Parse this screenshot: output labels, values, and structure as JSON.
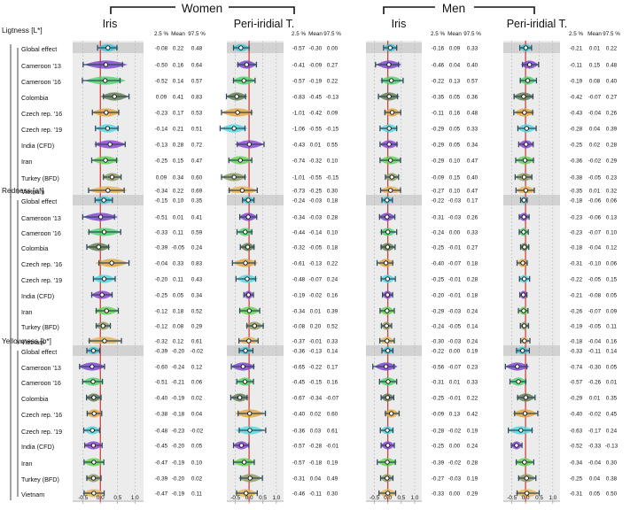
{
  "groups": [
    "Women",
    "Men"
  ],
  "panel_titles": [
    "Iris",
    "Peri-iridial T.",
    "Iris",
    "Peri-iridial T."
  ],
  "stat_headers": [
    "2.5 %",
    "Mean",
    "97.5 %"
  ],
  "sections": [
    "Ligtness [L*]",
    "Redness [a*]",
    "Yellowness [b*]"
  ],
  "rows": [
    "Global effect",
    "Cameroon '13",
    "Cameroon '16",
    "Colombia",
    "Czech rep. '16",
    "Czech rep. '19",
    "India (CFD)",
    "Iran",
    "Turkey (BFD)",
    "Vietnam"
  ],
  "colors": {
    "Global effect": "#36c5d4",
    "Cameroon '13": "#7b3fcf",
    "Cameroon '16": "#4bd36b",
    "Colombia": "#5d7a4a",
    "Czech rep. '16": "#e0a43a",
    "Czech rep. '19": "#4bd8e0",
    "India (CFD)": "#8a3fd6",
    "Iran": "#5fd34f",
    "Turkey (BFD)": "#8d9a5c",
    "Vietnam": "#e8b24f",
    "zero_line": "#cc2222",
    "whisker": "#2f4a5e"
  },
  "x_ticks": [
    "-0.5",
    "0.0",
    "0.5",
    "1.0"
  ],
  "chart_data": {
    "type": "forest",
    "x_range": [
      -0.75,
      1.2
    ],
    "sections": [
      {
        "name": "Ligtness [L*]",
        "panels": [
          {
            "group": "Women",
            "title": "Iris",
            "values": [
              [
                "-0.08",
                "0.22",
                "0.48"
              ],
              [
                "-0.50",
                "0.16",
                "0.64"
              ],
              [
                "-0.52",
                "0.14",
                "0.57"
              ],
              [
                "0.09",
                "0.41",
                "0.83"
              ],
              [
                "-0.23",
                "0.17",
                "0.53"
              ],
              [
                "-0.14",
                "0.21",
                "0.51"
              ],
              [
                "-0.13",
                "0.28",
                "0.72"
              ],
              [
                "-0.25",
                "0.15",
                "0.47"
              ],
              [
                "0.09",
                "0.34",
                "0.60"
              ],
              [
                "-0.34",
                "0.22",
                "0.69"
              ]
            ]
          },
          {
            "group": "Women",
            "title": "Peri-iridial T.",
            "values": [
              [
                "-0.57",
                "-0.30",
                "0.00"
              ],
              [
                "-0.41",
                "-0.09",
                "0.27"
              ],
              [
                "-0.57",
                "-0.19",
                "0.22"
              ],
              [
                "-0.83",
                "-0.45",
                "-0.13"
              ],
              [
                "-1.01",
                "-0.42",
                "0.09"
              ],
              [
                "-1.06",
                "-0.55",
                "-0.15"
              ],
              [
                "-0.43",
                "0.01",
                "0.55"
              ],
              [
                "-0.74",
                "-0.32",
                "0.10"
              ],
              [
                "-1.01",
                "-0.55",
                "-0.15"
              ],
              [
                "-0.73",
                "-0.25",
                "0.30"
              ]
            ]
          },
          {
            "group": "Men",
            "title": "Iris",
            "values": [
              [
                "-0.16",
                "0.09",
                "0.33"
              ],
              [
                "-0.46",
                "0.04",
                "0.40"
              ],
              [
                "-0.22",
                "0.13",
                "0.57"
              ],
              [
                "-0.35",
                "0.05",
                "0.36"
              ],
              [
                "-0.11",
                "0.16",
                "0.48"
              ],
              [
                "-0.29",
                "0.05",
                "0.33"
              ],
              [
                "-0.29",
                "0.05",
                "0.34"
              ],
              [
                "-0.29",
                "0.10",
                "0.47"
              ],
              [
                "-0.09",
                "0.15",
                "0.40"
              ],
              [
                "-0.27",
                "0.10",
                "0.47"
              ]
            ]
          },
          {
            "group": "Men",
            "title": "Peri-iridial T.",
            "values": [
              [
                "-0.21",
                "0.01",
                "0.22"
              ],
              [
                "-0.11",
                "0.15",
                "0.48"
              ],
              [
                "-0.19",
                "0.08",
                "0.40"
              ],
              [
                "-0.42",
                "-0.07",
                "0.27"
              ],
              [
                "-0.43",
                "-0.04",
                "0.26"
              ],
              [
                "-0.28",
                "0.04",
                "0.39"
              ],
              [
                "-0.25",
                "0.02",
                "0.28"
              ],
              [
                "-0.36",
                "-0.02",
                "0.29"
              ],
              [
                "-0.38",
                "-0.05",
                "0.23"
              ],
              [
                "-0.35",
                "0.01",
                "0.32"
              ]
            ]
          }
        ]
      },
      {
        "name": "Redness [a*]",
        "panels": [
          {
            "group": "Women",
            "title": "Iris",
            "values": [
              [
                "-0.15",
                "0.10",
                "0.35"
              ],
              [
                "-0.51",
                "0.01",
                "0.41"
              ],
              [
                "-0.33",
                "0.11",
                "0.59"
              ],
              [
                "-0.39",
                "-0.05",
                "0.24"
              ],
              [
                "-0.04",
                "0.33",
                "0.83"
              ],
              [
                "-0.20",
                "0.11",
                "0.43"
              ],
              [
                "-0.25",
                "0.05",
                "0.34"
              ],
              [
                "-0.12",
                "0.18",
                "0.52"
              ],
              [
                "-0.12",
                "0.08",
                "0.29"
              ],
              [
                "-0.32",
                "0.12",
                "0.61"
              ]
            ]
          },
          {
            "group": "Women",
            "title": "Peri-iridial T.",
            "values": [
              [
                "-0.24",
                "-0.03",
                "0.18"
              ],
              [
                "-0.34",
                "-0.03",
                "0.28"
              ],
              [
                "-0.44",
                "-0.14",
                "0.10"
              ],
              [
                "-0.32",
                "-0.05",
                "0.18"
              ],
              [
                "-0.61",
                "-0.13",
                "0.22"
              ],
              [
                "-0.48",
                "-0.07",
                "0.24"
              ],
              [
                "-0.19",
                "-0.02",
                "0.16"
              ],
              [
                "-0.34",
                "0.01",
                "0.39"
              ],
              [
                "-0.08",
                "0.20",
                "0.52"
              ],
              [
                "-0.37",
                "-0.01",
                "0.33"
              ]
            ]
          },
          {
            "group": "Men",
            "title": "Iris",
            "values": [
              [
                "-0.22",
                "-0.03",
                "0.17"
              ],
              [
                "-0.31",
                "-0.03",
                "0.26"
              ],
              [
                "-0.24",
                "0.00",
                "0.33"
              ],
              [
                "-0.25",
                "-0.01",
                "0.27"
              ],
              [
                "-0.40",
                "-0.07",
                "0.18"
              ],
              [
                "-0.25",
                "-0.01",
                "0.28"
              ],
              [
                "-0.20",
                "-0.01",
                "0.18"
              ],
              [
                "-0.29",
                "-0.03",
                "0.24"
              ],
              [
                "-0.24",
                "-0.05",
                "0.14"
              ],
              [
                "-0.30",
                "-0.03",
                "0.24"
              ]
            ]
          },
          {
            "group": "Men",
            "title": "Peri-iridial T.",
            "values": [
              [
                "-0.18",
                "-0.06",
                "0.06"
              ],
              [
                "-0.23",
                "-0.06",
                "0.13"
              ],
              [
                "-0.23",
                "-0.07",
                "0.10"
              ],
              [
                "-0.18",
                "-0.04",
                "0.12"
              ],
              [
                "-0.31",
                "-0.10",
                "0.06"
              ],
              [
                "-0.22",
                "-0.05",
                "0.15"
              ],
              [
                "-0.21",
                "-0.08",
                "0.05"
              ],
              [
                "-0.26",
                "-0.07",
                "0.09"
              ],
              [
                "-0.19",
                "-0.05",
                "0.11"
              ],
              [
                "-0.18",
                "-0.04",
                "0.16"
              ]
            ]
          }
        ]
      },
      {
        "name": "Yellowness [b*]",
        "panels": [
          {
            "group": "Women",
            "title": "Iris",
            "values": [
              [
                "-0.39",
                "-0.20",
                "-0.02"
              ],
              [
                "-0.60",
                "-0.24",
                "0.12"
              ],
              [
                "-0.51",
                "-0.21",
                "0.06"
              ],
              [
                "-0.40",
                "-0.19",
                "0.02"
              ],
              [
                "-0.38",
                "-0.18",
                "0.04"
              ],
              [
                "-0.48",
                "-0.23",
                "-0.02"
              ],
              [
                "-0.45",
                "-0.20",
                "0.05"
              ],
              [
                "-0.47",
                "-0.19",
                "0.10"
              ],
              [
                "-0.39",
                "-0.20",
                "0.02"
              ],
              [
                "-0.47",
                "-0.19",
                "0.11"
              ]
            ]
          },
          {
            "group": "Women",
            "title": "Peri-iridial T.",
            "values": [
              [
                "-0.36",
                "-0.13",
                "0.14"
              ],
              [
                "-0.65",
                "-0.22",
                "0.17"
              ],
              [
                "-0.45",
                "-0.15",
                "0.16"
              ],
              [
                "-0.67",
                "-0.34",
                "-0.07"
              ],
              [
                "-0.40",
                "0.02",
                "0.60"
              ],
              [
                "-0.36",
                "0.03",
                "0.61"
              ],
              [
                "-0.57",
                "-0.28",
                "-0.01"
              ],
              [
                "-0.57",
                "-0.18",
                "0.19"
              ],
              [
                "-0.31",
                "0.04",
                "0.49"
              ],
              [
                "-0.46",
                "-0.11",
                "0.30"
              ]
            ]
          },
          {
            "group": "Men",
            "title": "Iris",
            "values": [
              [
                "-0.22",
                "0.00",
                "0.19"
              ],
              [
                "-0.56",
                "-0.07",
                "0.23"
              ],
              [
                "-0.31",
                "0.01",
                "0.33"
              ],
              [
                "-0.25",
                "-0.01",
                "0.22"
              ],
              [
                "-0.09",
                "0.13",
                "0.42"
              ],
              [
                "-0.28",
                "-0.02",
                "0.19"
              ],
              [
                "-0.25",
                "0.00",
                "0.24"
              ],
              [
                "-0.39",
                "-0.02",
                "0.28"
              ],
              [
                "-0.27",
                "-0.03",
                "0.19"
              ],
              [
                "-0.33",
                "0.00",
                "0.29"
              ]
            ]
          },
          {
            "group": "Men",
            "title": "Peri-iridial T.",
            "values": [
              [
                "-0.33",
                "-0.11",
                "0.14"
              ],
              [
                "-0.74",
                "-0.30",
                "0.05"
              ],
              [
                "-0.57",
                "-0.26",
                "0.01"
              ],
              [
                "-0.29",
                "0.01",
                "0.35"
              ],
              [
                "-0.40",
                "-0.02",
                "0.45"
              ],
              [
                "-0.63",
                "-0.17",
                "0.24"
              ],
              [
                "-0.52",
                "-0.33",
                "-0.13"
              ],
              [
                "-0.34",
                "-0.04",
                "0.30"
              ],
              [
                "-0.25",
                "0.04",
                "0.38"
              ],
              [
                "-0.31",
                "0.05",
                "0.50"
              ]
            ]
          }
        ]
      }
    ]
  }
}
